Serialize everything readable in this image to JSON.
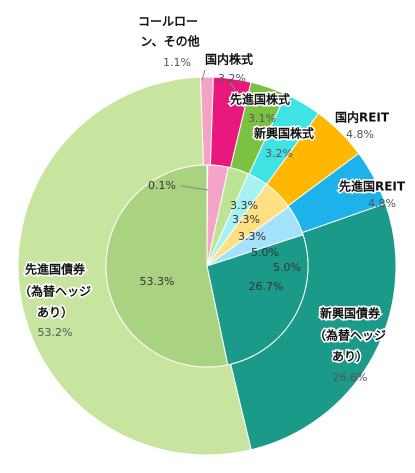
{
  "chart_data": {
    "type": "nested-donut",
    "outer": {
      "categories": [
        [
          "コールロー",
          "ン、その他"
        ],
        [
          "国内株式"
        ],
        [
          "先進国株式"
        ],
        [
          "新興国株式"
        ],
        [
          "国内REIT"
        ],
        [
          "先進国REIT"
        ],
        [
          "新興国債券",
          "（為替ヘッジ",
          "あり）"
        ],
        [
          "先進国債券",
          "（為替ヘッジ",
          "あり）"
        ]
      ],
      "values": [
        1.1,
        3.2,
        3.1,
        3.2,
        4.8,
        4.8,
        26.6,
        53.2
      ],
      "value_labels": [
        "1.1%",
        "3.2%",
        "3.1%",
        "3.2%",
        "4.8%",
        "4.8%",
        "26.6%",
        "53.2%"
      ],
      "colors": [
        "#f5a3c4",
        "#e8187c",
        "#7cc242",
        "#3fe3e3",
        "#ffb700",
        "#1eb2ea",
        "#1b9a8a",
        "#c7e59f"
      ]
    },
    "inner": {
      "values": [
        0.1,
        3.3,
        3.3,
        3.3,
        5.0,
        5.0,
        26.7,
        53.3
      ],
      "value_labels": [
        "0.1%",
        "3.3%",
        "3.3%",
        "3.3%",
        "5.0%",
        "5.0%",
        "26.7%",
        "53.3%"
      ],
      "colors": [
        "#f8c4d8",
        "#f5a3c8",
        "#bde394",
        "#a6f2f2",
        "#ffe184",
        "#a3e2f8",
        "#1b9a8a",
        "#aad381"
      ]
    }
  }
}
